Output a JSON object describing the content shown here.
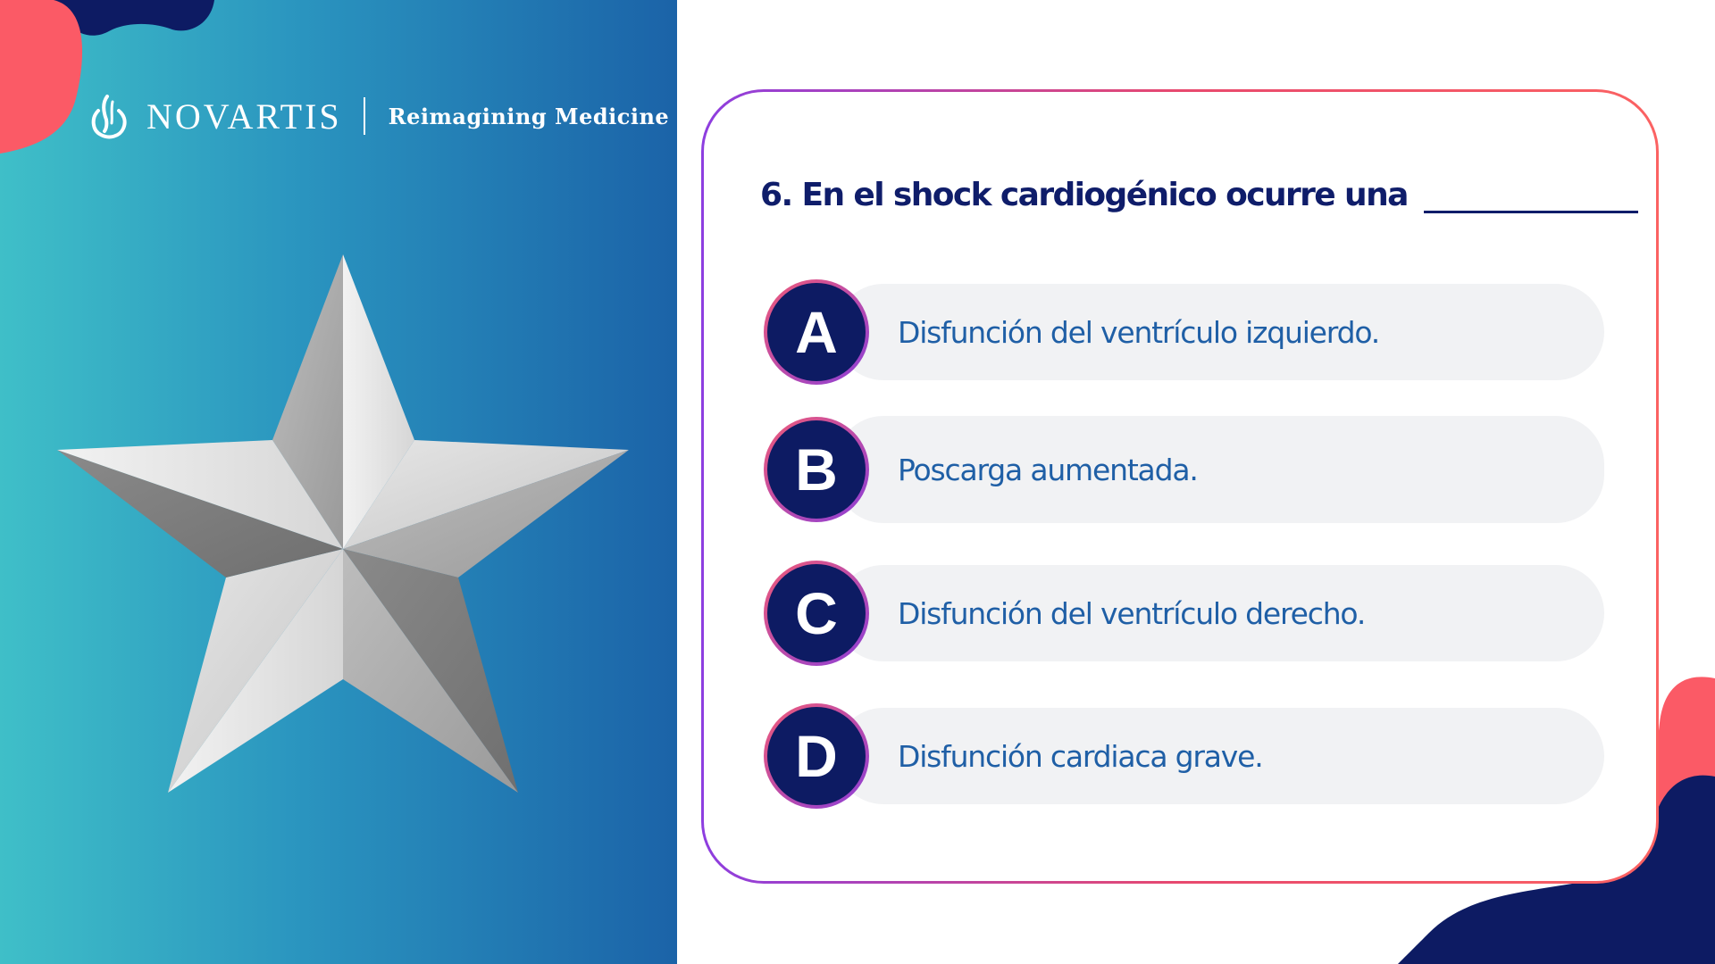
{
  "brand": {
    "name": "NOVARTIS",
    "tagline": "Reimagining Medicine"
  },
  "quiz": {
    "question": "6. En el shock cardiogénico ocurre una",
    "options": [
      {
        "letter": "A",
        "text": "Disfunción del ventrículo izquierdo."
      },
      {
        "letter": "B",
        "text": "Poscarga aumentada."
      },
      {
        "letter": "C",
        "text": "Disfunción del ventrículo derecho."
      },
      {
        "letter": "D",
        "text": "Disfunción cardiaca grave."
      }
    ]
  },
  "colors": {
    "navy": "#0d1b63",
    "coral": "#fb5a66",
    "option_text": "#1f5fa6",
    "option_background": "#f1f2f4",
    "panel_gradient_start": "#3fbfc8",
    "panel_gradient_end": "#1b63a8"
  },
  "icons": {
    "brand_logo": "novartis-flame-logo",
    "illustration": "silver-star"
  }
}
